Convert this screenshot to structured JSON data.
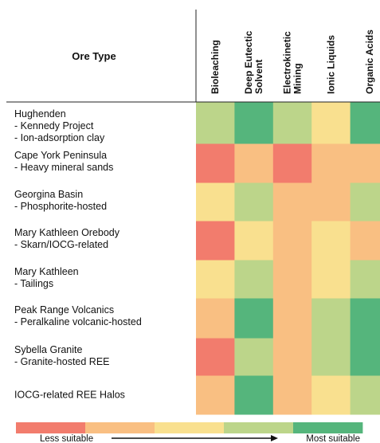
{
  "chart_data": {
    "type": "heatmap",
    "row_header": "Ore Type",
    "columns": [
      [
        "Bioleaching"
      ],
      [
        "Deep Eutectic",
        "Solvent"
      ],
      [
        "Electrokinetic",
        "Mining"
      ],
      [
        "Ionic Liquids"
      ],
      [
        "Organic Acids"
      ]
    ],
    "rows": [
      {
        "label": [
          "Hughenden",
          "- Kennedy Project",
          "- Ion-adsorption clay"
        ],
        "values": [
          4,
          5,
          4,
          3,
          5
        ]
      },
      {
        "label": [
          "Cape York Peninsula",
          "- Heavy mineral sands"
        ],
        "values": [
          1,
          2,
          1,
          2,
          2
        ]
      },
      {
        "label": [
          "Georgina Basin",
          "- Phosphorite-hosted"
        ],
        "values": [
          3,
          4,
          2,
          2,
          4
        ]
      },
      {
        "label": [
          "Mary Kathleen Orebody",
          "- Skarn/IOCG-related"
        ],
        "values": [
          1,
          3,
          2,
          3,
          2
        ]
      },
      {
        "label": [
          "Mary Kathleen",
          "- Tailings"
        ],
        "values": [
          3,
          4,
          2,
          3,
          4
        ]
      },
      {
        "label": [
          "Peak Range Volcanics",
          " - Peralkaline volcanic-hosted"
        ],
        "values": [
          2,
          5,
          2,
          4,
          5
        ]
      },
      {
        "label": [
          "Sybella Granite",
          " - Granite-hosted REE"
        ],
        "values": [
          1,
          4,
          2,
          4,
          5
        ]
      },
      {
        "label": [
          "IOCG-related REE Halos"
        ],
        "values": [
          2,
          5,
          2,
          3,
          4
        ]
      }
    ],
    "scale": {
      "levels": [
        1,
        2,
        3,
        4,
        5
      ],
      "colors": [
        "#f27c6d",
        "#f9bf82",
        "#f9e08f",
        "#bcd58a",
        "#55b57c"
      ],
      "low_label": "Less suitable",
      "high_label": "Most suitable"
    }
  }
}
